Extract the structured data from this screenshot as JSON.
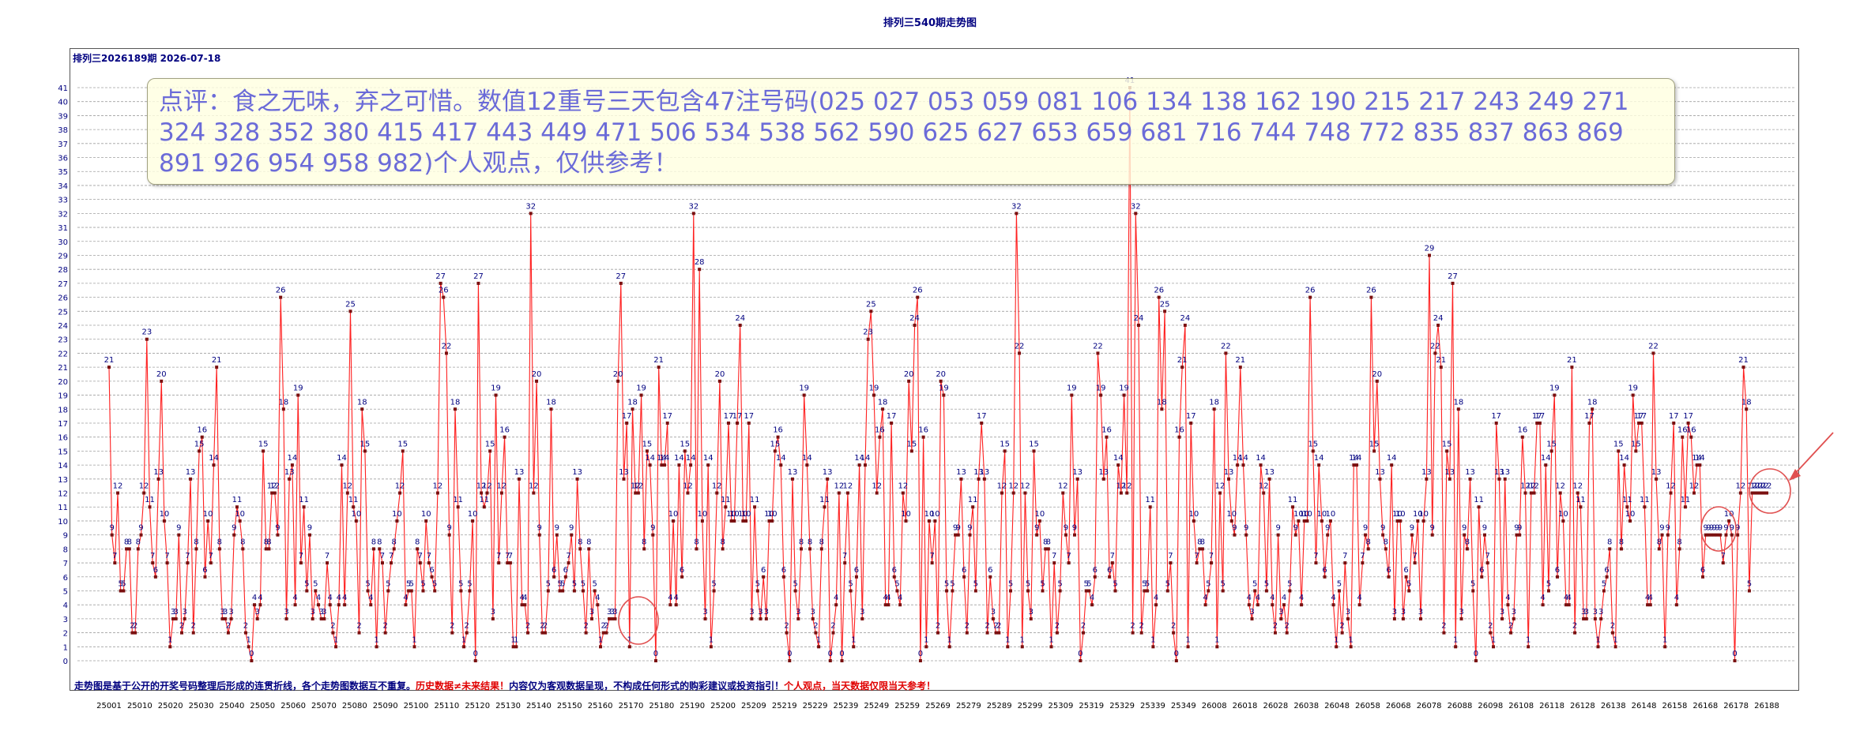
{
  "page_title": "排列三540期走势图",
  "period_label": "排列三2026189期  2026-07-18",
  "comment": "点评：食之无味，弃之可惜。数值12重号三天包含47注号码(025  027  053  059  081  106  134  138  162  190  215  217  243  249  271  324  328  352  380  415  417  443  449  471  506  534  538  562  590  625  627  653  659  681  716  744  748  772  835  837  863  869  891  926  954  958  982)个人观点，仅供参考！",
  "footer": {
    "part1": "走势图是基于公开的开奖号码整理后形成的连贯折线，各个走势图数据互不重复。",
    "part2": "历史数据≠未来结果！",
    "part3": "内容仅为客观数据呈现，不构成任何形式的购彩建议或投资指引！",
    "part4": "个人观点，当天数据仅限当天参考！"
  },
  "colors": {
    "line": "#ff2020",
    "marker": "#7a1010",
    "label": "#000080",
    "highlight": "#e05050",
    "grid": "#a0a0a0"
  },
  "chart_data": {
    "type": "line",
    "title": "排列三540期走势图",
    "ylim": [
      0,
      41
    ],
    "y_ticks": [
      0,
      1,
      2,
      3,
      4,
      5,
      6,
      7,
      8,
      9,
      10,
      11,
      12,
      13,
      14,
      15,
      16,
      17,
      18,
      19,
      20,
      21,
      22,
      23,
      24,
      25,
      26,
      27,
      28,
      29,
      30,
      31,
      32,
      33,
      34,
      35,
      36,
      37,
      38,
      39,
      40,
      41
    ],
    "x_tick_labels": [
      "25001",
      "25010",
      "25020",
      "25030",
      "25040",
      "25050",
      "25060",
      "25070",
      "25080",
      "25090",
      "25100",
      "25110",
      "25120",
      "25130",
      "25140",
      "25150",
      "25160",
      "25170",
      "25180",
      "25190",
      "25200",
      "25209",
      "25219",
      "25229",
      "25239",
      "25249",
      "25259",
      "25269",
      "25279",
      "25289",
      "25299",
      "25309",
      "25319",
      "25329",
      "25339",
      "25349",
      "26008",
      "26018",
      "26028",
      "26038",
      "26048",
      "26058",
      "26068",
      "26078",
      "26088",
      "26098",
      "26108",
      "26118",
      "26128",
      "26138",
      "26148",
      "26158",
      "26168",
      "26178",
      "26188"
    ],
    "grid": true,
    "values": [
      21,
      9,
      7,
      12,
      5,
      5,
      8,
      8,
      2,
      2,
      8,
      9,
      12,
      23,
      11,
      7,
      6,
      13,
      20,
      10,
      7,
      1,
      3,
      3,
      9,
      2,
      3,
      7,
      13,
      2,
      8,
      15,
      16,
      6,
      10,
      7,
      14,
      21,
      8,
      3,
      3,
      2,
      3,
      9,
      11,
      10,
      8,
      2,
      1,
      0,
      4,
      3,
      4,
      15,
      8,
      8,
      12,
      12,
      9,
      26,
      18,
      3,
      13,
      14,
      4,
      19,
      7,
      11,
      5,
      9,
      3,
      5,
      4,
      3,
      3,
      7,
      4,
      2,
      1,
      4,
      14,
      4,
      12,
      25,
      11,
      10,
      2,
      18,
      15,
      5,
      4,
      8,
      1,
      8,
      7,
      2,
      5,
      7,
      8,
      10,
      12,
      15,
      4,
      5,
      5,
      1,
      8,
      7,
      5,
      10,
      7,
      6,
      5,
      12,
      27,
      26,
      22,
      9,
      2,
      18,
      11,
      5,
      1,
      2,
      5,
      10,
      0,
      27,
      12,
      11,
      12,
      15,
      3,
      19,
      7,
      12,
      16,
      7,
      7,
      1,
      1,
      13,
      4,
      4,
      2,
      32,
      12,
      20,
      9,
      2,
      2,
      5,
      18,
      6,
      9,
      5,
      5,
      6,
      7,
      9,
      5,
      13,
      8,
      5,
      2,
      8,
      3,
      5,
      4,
      1,
      2,
      2,
      3,
      3,
      3,
      20,
      27,
      13,
      17,
      1,
      18,
      12,
      12,
      19,
      8,
      15,
      14,
      9,
      0,
      21,
      14,
      14,
      17,
      4,
      10,
      4,
      14,
      6,
      15,
      12,
      14,
      32,
      8,
      28,
      10,
      3,
      14,
      1,
      5,
      12,
      20,
      8,
      11,
      17,
      10,
      10,
      17,
      24,
      10,
      10,
      17,
      3,
      11,
      5,
      3,
      6,
      3,
      10,
      10,
      15,
      16,
      14,
      6,
      2,
      0,
      13,
      5,
      3,
      8,
      19,
      14,
      8,
      3,
      2,
      1,
      8,
      11,
      13,
      0,
      2,
      4,
      12,
      0,
      7,
      12,
      5,
      1,
      6,
      14,
      3,
      14,
      23,
      25,
      19,
      12,
      16,
      18,
      4,
      4,
      17,
      6,
      5,
      4,
      12,
      10,
      20,
      15,
      24,
      26,
      0,
      16,
      1,
      10,
      7,
      10,
      2,
      20,
      19,
      5,
      1,
      5,
      9,
      9,
      13,
      6,
      2,
      9,
      11,
      5,
      13,
      17,
      13,
      2,
      6,
      3,
      2,
      2,
      12,
      15,
      1,
      5,
      12,
      32,
      22,
      1,
      12,
      5,
      3,
      15,
      9,
      10,
      5,
      8,
      8,
      1,
      7,
      2,
      5,
      12,
      9,
      7,
      19,
      9,
      13,
      0,
      2,
      5,
      5,
      4,
      6,
      22,
      19,
      13,
      16,
      6,
      7,
      5,
      14,
      12,
      19,
      12,
      41,
      2,
      32,
      24,
      2,
      5,
      5,
      11,
      1,
      4,
      26,
      18,
      25,
      5,
      7,
      2,
      0,
      16,
      21,
      24,
      1,
      17,
      10,
      7,
      8,
      8,
      4,
      5,
      7,
      18,
      1,
      12,
      5,
      22,
      13,
      10,
      9,
      14,
      21,
      14,
      9,
      4,
      3,
      5,
      4,
      14,
      12,
      5,
      13,
      4,
      2,
      9,
      3,
      4,
      2,
      5,
      11,
      9,
      10,
      4,
      10,
      10,
      26,
      15,
      7,
      14,
      10,
      6,
      9,
      10,
      4,
      1,
      5,
      2,
      7,
      3,
      1,
      14,
      14,
      4,
      7,
      9,
      8,
      26,
      15,
      20,
      13,
      9,
      8,
      6,
      14,
      3,
      10,
      10,
      3,
      6,
      5,
      9,
      7,
      10,
      3,
      10,
      13,
      29,
      9,
      22,
      24,
      21,
      2,
      15,
      13,
      27,
      1,
      18,
      3,
      9,
      8,
      13,
      5,
      0,
      11,
      6,
      9,
      7,
      2,
      1,
      17,
      13,
      3,
      13,
      4,
      2,
      3,
      9,
      9,
      16,
      12,
      1,
      12,
      12,
      17,
      17,
      4,
      14,
      5,
      15,
      19,
      6,
      12,
      10,
      4,
      4,
      21,
      2,
      12,
      11,
      3,
      3,
      17,
      18,
      3,
      1,
      3,
      5,
      6,
      8,
      2,
      1,
      15,
      8,
      14,
      11,
      10,
      19,
      15,
      17,
      17,
      11,
      4,
      4,
      22,
      13,
      8,
      9,
      1,
      9,
      12,
      17,
      4,
      8,
      16,
      11,
      17,
      16,
      12,
      14,
      14,
      6,
      9,
      9,
      9,
      9,
      9,
      9,
      7,
      9,
      10,
      9,
      0,
      9,
      12,
      21,
      18,
      5,
      12,
      12,
      12,
      12,
      12,
      12
    ]
  }
}
